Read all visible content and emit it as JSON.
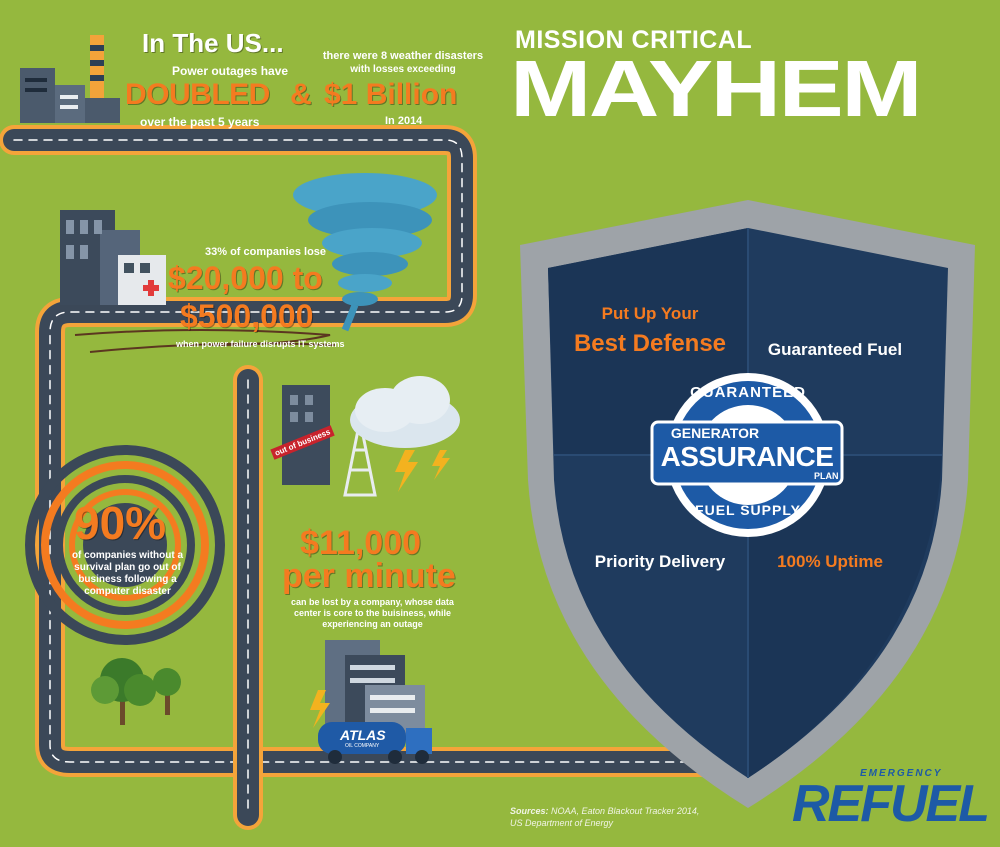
{
  "header": {
    "us_title": "In The US...",
    "outage_pre": "Power outages have",
    "doubled": "DOUBLED",
    "amp": "&",
    "billion": "$1 Billion",
    "outage_post": "over the past 5 years",
    "weather_line1": "there were 8 weather disasters",
    "weather_line2": "with losses exceeding",
    "weather_year": "In 2014",
    "mission": "MISSION CRITICAL",
    "mayhem": "MAYHEM"
  },
  "stats": {
    "companies_pct": "33% of companies lose",
    "loss_line1": "$20,000 to",
    "loss_line2": "$500,000",
    "loss_caption": "when power failure disrupts IT systems",
    "out_of_business": "out of business",
    "ninety": "90%",
    "ninety_caption": "of companies without a survival plan go out of business following a computer disaster",
    "per_minute_1": "$11,000",
    "per_minute_2": "per minute",
    "per_minute_caption": "can be lost by a company, whose data center is core to the buisiness, while experiencing an outage"
  },
  "truck": {
    "brand": "ATLAS",
    "sub": "OIL COMPANY"
  },
  "shield": {
    "q1_line1": "Put Up Your",
    "q1_line2": "Best Defense",
    "q2": "Guaranteed Fuel",
    "q3": "Priority Delivery",
    "q4": "100% Uptime",
    "badge_top": "GUARANTEED",
    "badge_generator": "GENERATOR",
    "badge_assurance": "ASSURANCE",
    "badge_plan": "PLAN",
    "badge_bottom": "FUEL SUPPLY"
  },
  "footer": {
    "sources_label": "Sources:",
    "sources_text": "NOAA, Eaton Blackout Tracker 2014,",
    "sources_text2": "US Department of Energy",
    "logo_emergency": "EMERGENCY",
    "logo_refuel": "REFUEL"
  },
  "colors": {
    "background": "#95b83e",
    "accent_orange": "#f47b20",
    "navy": "#1f3b5e",
    "road": "#3b4858",
    "brand_blue": "#1d5aa6"
  }
}
